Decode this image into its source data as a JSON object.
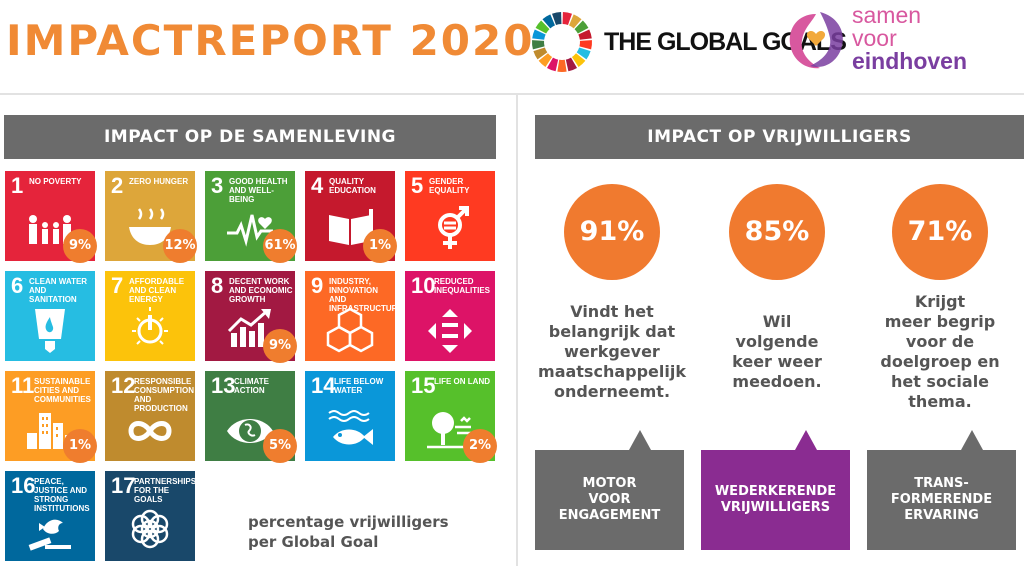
{
  "header": {
    "title": "IMPACTREPORT 2020",
    "global_goals_text": "THE GLOBAL GOALS",
    "partner_logo_lines": [
      "samen",
      "voor",
      "eindhoven"
    ]
  },
  "left_section": {
    "heading": "IMPACT OP DE SAMENLEVING",
    "legend_lines": [
      "percentage vrijwilligers",
      "per Global Goal"
    ],
    "goals": [
      {
        "number": "1",
        "label": "NO POVERTY",
        "color": "#e5243b",
        "icon": "family-icon",
        "percent": "9%"
      },
      {
        "number": "2",
        "label": "ZERO HUNGER",
        "color": "#dda63a",
        "icon": "bowl-icon",
        "percent": "12%"
      },
      {
        "number": "3",
        "label": "GOOD HEALTH AND WELL-BEING",
        "color": "#4c9f38",
        "icon": "heartbeat-icon",
        "percent": "61%"
      },
      {
        "number": "4",
        "label": "QUALITY EDUCATION",
        "color": "#c5192d",
        "icon": "book-icon",
        "percent": "1%"
      },
      {
        "number": "5",
        "label": "GENDER EQUALITY",
        "color": "#ff3a21",
        "icon": "gender-icon",
        "percent": ""
      },
      {
        "number": "6",
        "label": "CLEAN WATER AND SANITATION",
        "color": "#26bde2",
        "icon": "water-icon",
        "percent": ""
      },
      {
        "number": "7",
        "label": "AFFORDABLE AND CLEAN ENERGY",
        "color": "#fcc30b",
        "icon": "power-icon",
        "percent": ""
      },
      {
        "number": "8",
        "label": "DECENT WORK AND ECONOMIC GROWTH",
        "color": "#a21942",
        "icon": "growth-chart-icon",
        "percent": "9%"
      },
      {
        "number": "9",
        "label": "INDUSTRY, INNOVATION AND INFRASTRUCTURE",
        "color": "#fd6925",
        "icon": "cubes-icon",
        "percent": ""
      },
      {
        "number": "10",
        "label": "REDUCED INEQUALITIES",
        "color": "#dd1367",
        "icon": "equality-icon",
        "percent": ""
      },
      {
        "number": "11",
        "label": "SUSTAINABLE CITIES AND COMMUNITIES",
        "color": "#fd9d24",
        "icon": "buildings-icon",
        "percent": "1%"
      },
      {
        "number": "12",
        "label": "RESPONSIBLE CONSUMPTION AND PRODUCTION",
        "color": "#bf8b2e",
        "icon": "infinity-icon",
        "percent": ""
      },
      {
        "number": "13",
        "label": "CLIMATE ACTION",
        "color": "#3f7e44",
        "icon": "eye-globe-icon",
        "percent": "5%"
      },
      {
        "number": "14",
        "label": "LIFE BELOW WATER",
        "color": "#0a97d9",
        "icon": "fish-icon",
        "percent": ""
      },
      {
        "number": "15",
        "label": "LIFE ON LAND",
        "color": "#56c02b",
        "icon": "tree-icon",
        "percent": "2%"
      },
      {
        "number": "16",
        "label": "PEACE, JUSTICE AND STRONG INSTITUTIONS",
        "color": "#00689d",
        "icon": "dove-gavel-icon",
        "percent": ""
      },
      {
        "number": "17",
        "label": "PARTNERSHIPS FOR THE GOALS",
        "color": "#19486a",
        "icon": "rings-icon",
        "percent": ""
      }
    ]
  },
  "right_section": {
    "heading": "IMPACT OP VRIJWILLIGERS",
    "stats": [
      {
        "value": "91%",
        "statement": [
          "Vindt het",
          "belangrijk dat",
          "werkgever",
          "maatschappelijk",
          "onderneemt."
        ],
        "callout": [
          "MOTOR",
          "VOOR",
          "ENGAGEMENT"
        ],
        "callout_color": "#6b6b6b"
      },
      {
        "value": "85%",
        "statement": [
          "Wil",
          "volgende",
          "keer weer",
          "meedoen."
        ],
        "callout": [
          "WEDERKERENDE",
          "VRIJWILLIGERS"
        ],
        "callout_color": "#8a2c91"
      },
      {
        "value": "71%",
        "statement": [
          "Krijgt",
          "meer begrip",
          "voor de",
          "doelgroep en",
          "het sociale",
          "thema."
        ],
        "callout": [
          "TRANS-",
          "FORMERENDE",
          "ERVARING"
        ],
        "callout_color": "#6b6b6b"
      }
    ]
  }
}
